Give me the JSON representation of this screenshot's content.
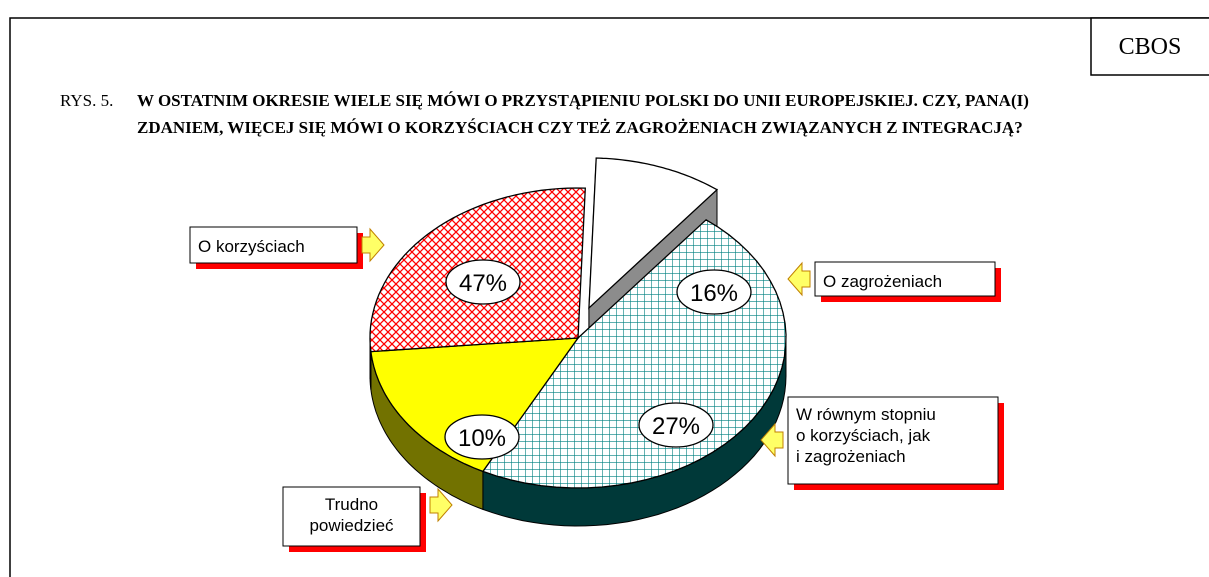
{
  "source": "CBOS",
  "figure_label": "RYS. 5.",
  "chart_data": {
    "type": "pie",
    "title": "W OSTATNIM OKRESIE WIELE SIĘ MÓWI O PRZYSTĄPIENIU POLSKI DO UNII EUROPEJSKIEJ. CZY, PANA(I) ZDANIEM, WIĘCEJ SIĘ MÓWI O KORZYŚCIACH CZY TEŻ ZAGROŻENIACH ZWIĄZANYCH Z INTEGRACJĄ?",
    "categories": [
      "O korzyściach",
      "O zagrożeniach",
      "W równym stopniu\no korzyściach, jak\ni zagrożeniach",
      "Trudno\npowiedzieć"
    ],
    "values": [
      47,
      16,
      27,
      10
    ],
    "value_labels": [
      "47%",
      "16%",
      "27%",
      "10%"
    ],
    "colors": [
      "#008080",
      "#ffff00",
      "#ff0000",
      "#ffffff"
    ],
    "hatches": [
      "grid",
      "none",
      "crosshatch",
      "none"
    ],
    "explode": [
      0,
      0,
      0,
      1
    ]
  }
}
